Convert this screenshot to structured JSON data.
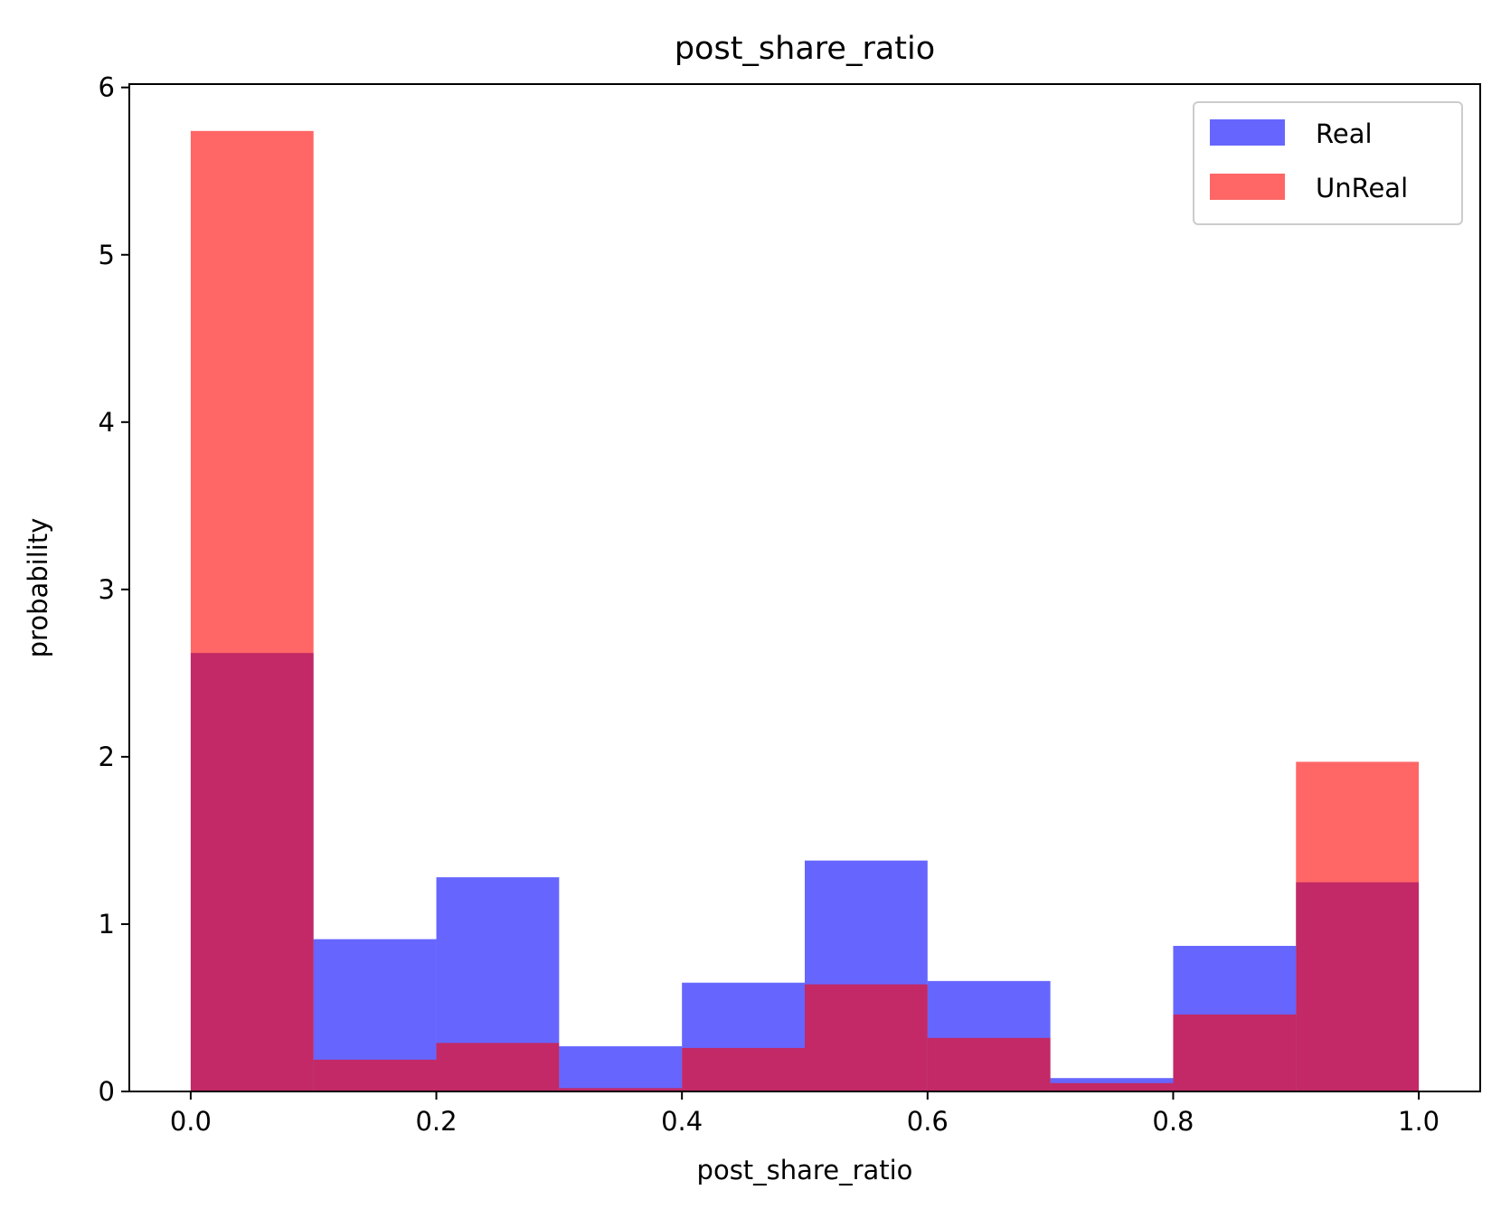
{
  "chart_data": {
    "type": "bar",
    "subtype": "histogram",
    "title": "post_share_ratio",
    "xlabel": "post_share_ratio",
    "ylabel": "probability",
    "xlim": [
      -0.05,
      1.05
    ],
    "ylim": [
      0,
      6.02
    ],
    "xticks": [
      0.0,
      0.2,
      0.4,
      0.6,
      0.8,
      1.0
    ],
    "xtick_labels": [
      "0.0",
      "0.2",
      "0.4",
      "0.6",
      "0.8",
      "1.0"
    ],
    "yticks": [
      0,
      1,
      2,
      3,
      4,
      5,
      6
    ],
    "ytick_labels": [
      "0",
      "1",
      "2",
      "3",
      "4",
      "5",
      "6"
    ],
    "bin_edges": [
      0.0,
      0.1,
      0.2,
      0.3,
      0.4,
      0.5,
      0.6,
      0.7,
      0.8,
      0.9,
      1.0
    ],
    "series": [
      {
        "name": "Real",
        "color": "#0000ff",
        "alpha": 0.6,
        "values": [
          2.62,
          0.91,
          1.28,
          0.27,
          0.65,
          1.38,
          0.66,
          0.08,
          0.87,
          1.25
        ]
      },
      {
        "name": "UnReal",
        "color": "#ff0000",
        "alpha": 0.6,
        "values": [
          5.74,
          0.19,
          0.29,
          0.02,
          0.26,
          0.64,
          0.32,
          0.05,
          0.46,
          1.97
        ]
      }
    ],
    "legend": {
      "position": "top-right",
      "entries": [
        "Real",
        "UnReal"
      ]
    },
    "grid": false
  }
}
